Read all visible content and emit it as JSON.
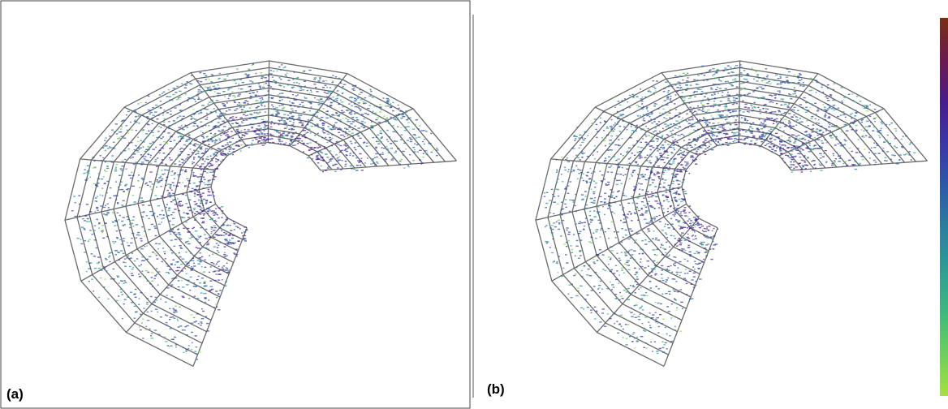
{
  "panels": [
    {
      "label": "(a)"
    },
    {
      "label": "(b)"
    }
  ],
  "colors": {
    "mesh": "#6a6a6a",
    "border": "#444444",
    "colormap": [
      "#7a2e12",
      "#6b1a4e",
      "#4a1c8c",
      "#3a36a8",
      "#2d5aa8",
      "#2a7fa0",
      "#2e9d96",
      "#3db87f",
      "#6cd05a",
      "#a8e040"
    ]
  }
}
